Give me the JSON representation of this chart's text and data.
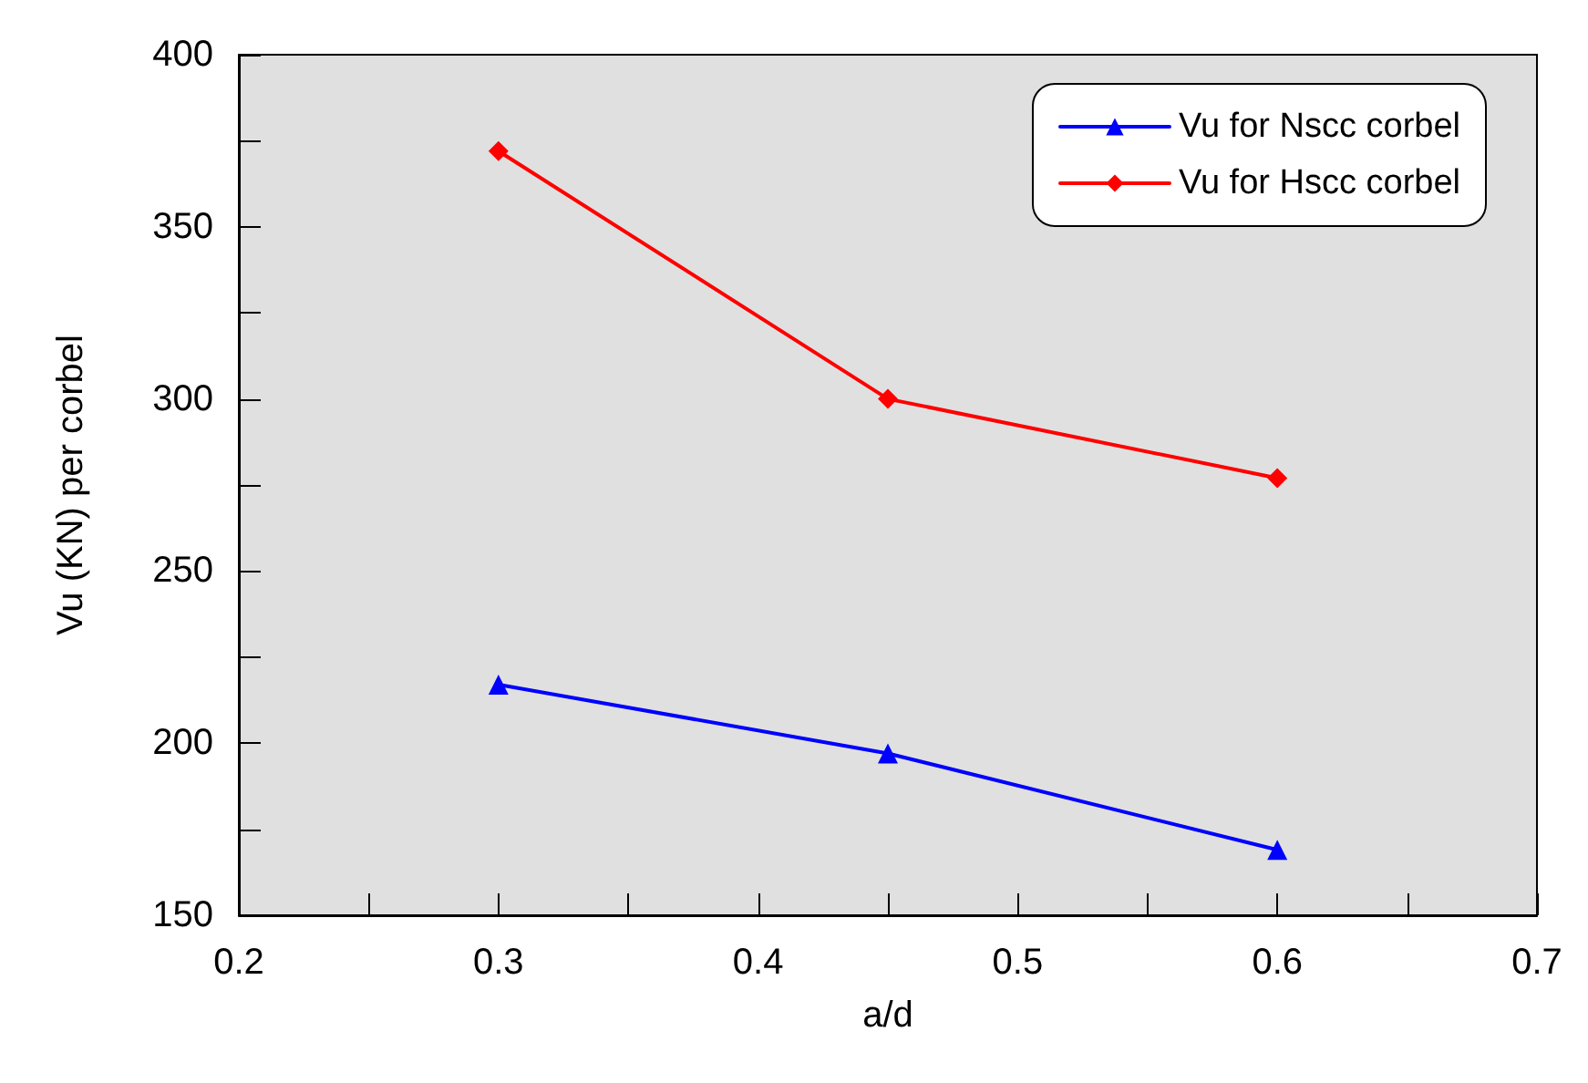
{
  "chart_data": {
    "type": "line",
    "xlabel": "a/d",
    "ylabel": "Vu (KN) per corbel",
    "x": [
      0.3,
      0.45,
      0.6
    ],
    "series": [
      {
        "name": "Vu for Nscc corbel",
        "color": "#0000ff",
        "marker": "triangle",
        "values": [
          217,
          197,
          169
        ]
      },
      {
        "name": "Vu for Hscc corbel",
        "color": "#ff0000",
        "marker": "diamond",
        "values": [
          372,
          300,
          277
        ]
      }
    ],
    "xlim": [
      0.2,
      0.7
    ],
    "xticks": [
      0.2,
      {
        "value": 0.25,
        "label": null
      },
      0.3,
      {
        "value": 0.35,
        "label": null
      },
      0.4,
      {
        "value": 0.45,
        "label": null
      },
      0.5,
      {
        "value": 0.55,
        "label": null
      },
      0.6,
      {
        "value": 0.65,
        "label": null
      },
      0.7
    ],
    "ylim": [
      150,
      400
    ],
    "yticks": [
      150,
      {
        "value": 175,
        "label": null
      },
      200,
      {
        "value": 225,
        "label": null
      },
      250,
      {
        "value": 275,
        "label": null
      },
      300,
      {
        "value": 325,
        "label": null
      },
      350,
      {
        "value": 375,
        "label": null
      },
      400
    ],
    "grid": false,
    "legend": "top right",
    "line_style": "solid"
  }
}
